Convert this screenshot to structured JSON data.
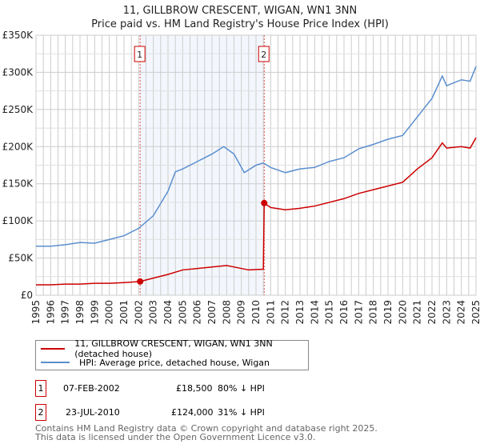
{
  "title_line1": "11, GILLBROW CRESCENT, WIGAN, WN1 3NN",
  "title_line2": "Price paid vs. HM Land Registry's House Price Index (HPI)",
  "chart_data": {
    "type": "line",
    "title": "11, GILLBROW CRESCENT, WIGAN, WN1 3NN — Price paid vs. HM Land Registry's House Price Index (HPI)",
    "xlim": [
      1995,
      2025
    ],
    "ylim": [
      0,
      350000
    ],
    "x_ticks": [
      "1995",
      "1996",
      "1997",
      "1998",
      "1999",
      "2000",
      "2001",
      "2002",
      "2003",
      "2004",
      "2005",
      "2006",
      "2007",
      "2008",
      "2009",
      "2010",
      "2011",
      "2012",
      "2013",
      "2014",
      "2015",
      "2016",
      "2017",
      "2018",
      "2019",
      "2020",
      "2021",
      "2022",
      "2023",
      "2024",
      "2025"
    ],
    "y_ticks": [
      {
        "v": 0,
        "label": "£0"
      },
      {
        "v": 50000,
        "label": "£50K"
      },
      {
        "v": 100000,
        "label": "£100K"
      },
      {
        "v": 150000,
        "label": "£150K"
      },
      {
        "v": 200000,
        "label": "£200K"
      },
      {
        "v": 250000,
        "label": "£250K"
      },
      {
        "v": 300000,
        "label": "£300K"
      },
      {
        "v": 350000,
        "label": "£350K"
      }
    ],
    "grid": true,
    "shaded_region": [
      2002.1,
      2010.56
    ],
    "series": [
      {
        "name": "HPI: Average price, detached house, Wigan",
        "color": "#5b8fd0",
        "x": [
          1995,
          1996,
          1997,
          1998,
          1999,
          2000,
          2001,
          2002,
          2003,
          2004,
          2004.5,
          2005,
          2006,
          2007,
          2007.8,
          2008.5,
          2009.2,
          2010,
          2010.5,
          2011,
          2012,
          2013,
          2014,
          2015,
          2016,
          2017,
          2018,
          2019,
          2020,
          2021,
          2022,
          2022.7,
          2023,
          2024,
          2024.6,
          2025
        ],
        "y": [
          66000,
          66000,
          68000,
          71000,
          70000,
          75000,
          80000,
          90000,
          107000,
          140000,
          166000,
          170000,
          180000,
          190000,
          200000,
          190000,
          165000,
          175000,
          178000,
          172000,
          165000,
          170000,
          172000,
          180000,
          185000,
          197000,
          203000,
          210000,
          215000,
          240000,
          265000,
          295000,
          282000,
          290000,
          288000,
          308000
        ]
      },
      {
        "name": "11, GILLBROW CRESCENT, WIGAN, WN1 3NN (detached house)",
        "color": "#cc0000",
        "x": [
          1995,
          1996,
          1997,
          1998,
          1999,
          2000,
          2001,
          2002.1,
          2003,
          2004,
          2005,
          2006,
          2007,
          2008,
          2009,
          2009.5,
          2010.5,
          2010.56,
          2011,
          2012,
          2013,
          2014,
          2015,
          2016,
          2017,
          2018,
          2019,
          2020,
          2021,
          2022,
          2022.7,
          2023,
          2024,
          2024.6,
          2025
        ],
        "y": [
          14000,
          14000,
          15000,
          15000,
          16000,
          16000,
          17000,
          18500,
          23000,
          28000,
          34000,
          36000,
          38000,
          40000,
          36000,
          34000,
          35000,
          124000,
          118000,
          115000,
          117000,
          120000,
          125000,
          130000,
          137000,
          142000,
          147000,
          152000,
          170000,
          185000,
          205000,
          198000,
          200000,
          198000,
          212000
        ]
      }
    ],
    "annotations": [
      {
        "label": "1",
        "x": 2002.1,
        "y": 18500
      },
      {
        "label": "2",
        "x": 2010.56,
        "y": 124000
      }
    ]
  },
  "legend": {
    "red": "11, GILLBROW CRESCENT, WIGAN, WN1 3NN (detached house)",
    "blue": "HPI: Average price, detached house, Wigan"
  },
  "sales": [
    {
      "num": "1",
      "date": "07-FEB-2002",
      "price": "£18,500",
      "hpi": "80% ↓ HPI"
    },
    {
      "num": "2",
      "date": "23-JUL-2010",
      "price": "£124,000",
      "hpi": "31% ↓ HPI"
    }
  ],
  "footer": {
    "line1": "Contains HM Land Registry data © Crown copyright and database right 2025.",
    "line2": "This data is licensed under the Open Government Licence v3.0."
  }
}
